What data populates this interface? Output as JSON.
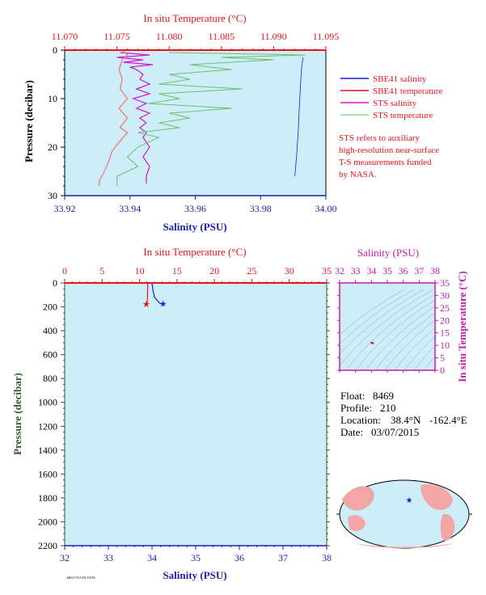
{
  "chart_data": [
    {
      "type": "line",
      "title": "",
      "top_axis_label": "In situ Temperature (°C)",
      "bottom_axis_label": "Salinity (PSU)",
      "left_axis_label": "Pressure (decibar)",
      "temperature_range": [
        11.07,
        11.095
      ],
      "temperature_ticks": [
        "11.070",
        "11.075",
        "11.080",
        "11.085",
        "11.090",
        "11.095"
      ],
      "salinity_range": [
        33.92,
        34.0
      ],
      "salinity_ticks": [
        "33.92",
        "33.94",
        "33.96",
        "33.98",
        "34.00"
      ],
      "pressure_range": [
        0,
        30
      ],
      "pressure_ticks": [
        "0",
        "10",
        "20",
        "30"
      ],
      "legend": [
        {
          "name": "SBE41 salinity",
          "color": "#1b1fd0"
        },
        {
          "name": "SBE41 temperature",
          "color": "#e8131b"
        },
        {
          "name": "STS salinity",
          "color": "#d01ad0"
        },
        {
          "name": "STS temperature",
          "color": "#8fd08f"
        }
      ],
      "note": [
        "STS refers to auxiliary",
        "high-resolution near-surface",
        "T-S measurements funded",
        "by NASA."
      ],
      "series": [
        {
          "name": "SBE41 salinity",
          "points": [
            [
              33.993,
              1.5
            ],
            [
              33.9925,
              4
            ],
            [
              33.992,
              10
            ],
            [
              33.9915,
              17
            ],
            [
              33.991,
              22
            ],
            [
              33.9905,
              26
            ]
          ]
        },
        {
          "name": "STS salinity",
          "points": [
            [
              33.937,
              0.5
            ],
            [
              33.946,
              1
            ],
            [
              33.936,
              1.5
            ],
            [
              33.944,
              2
            ],
            [
              33.938,
              2.5
            ],
            [
              33.947,
              3
            ],
            [
              33.94,
              3.5
            ],
            [
              33.942,
              4
            ],
            [
              33.944,
              5
            ],
            [
              33.943,
              6
            ],
            [
              33.946,
              7
            ],
            [
              33.942,
              8
            ],
            [
              33.946,
              9
            ],
            [
              33.941,
              10
            ],
            [
              33.945,
              11
            ],
            [
              33.942,
              12
            ],
            [
              33.946,
              13
            ],
            [
              33.943,
              14
            ],
            [
              33.945,
              15
            ],
            [
              33.943,
              16
            ],
            [
              33.945,
              17
            ],
            [
              33.944,
              18
            ],
            [
              33.946,
              20
            ],
            [
              33.944,
              22
            ],
            [
              33.946,
              24
            ],
            [
              33.945,
              26
            ],
            [
              33.945,
              27.5
            ]
          ]
        },
        {
          "name": "SBE41 temperature",
          "points": [
            [
              11.0755,
              0
            ],
            [
              11.076,
              1
            ],
            [
              11.0755,
              2
            ],
            [
              11.0752,
              4
            ],
            [
              11.0755,
              6
            ],
            [
              11.0753,
              8
            ],
            [
              11.076,
              10
            ],
            [
              11.0752,
              12
            ],
            [
              11.076,
              14
            ],
            [
              11.0753,
              16
            ],
            [
              11.076,
              17
            ],
            [
              11.0752,
              19
            ],
            [
              11.0745,
              21
            ],
            [
              11.0742,
              23
            ],
            [
              11.0738,
              25
            ],
            [
              11.0733,
              27
            ],
            [
              11.0733,
              28
            ]
          ]
        },
        {
          "name": "STS temperature",
          "points": [
            [
              11.08,
              0.5
            ],
            [
              11.093,
              1
            ],
            [
              11.085,
              1.5
            ],
            [
              11.09,
              2
            ],
            [
              11.082,
              3
            ],
            [
              11.086,
              4
            ],
            [
              11.08,
              5
            ],
            [
              11.082,
              6
            ],
            [
              11.079,
              7
            ],
            [
              11.087,
              8
            ],
            [
              11.079,
              9
            ],
            [
              11.081,
              10
            ],
            [
              11.078,
              11
            ],
            [
              11.086,
              12
            ],
            [
              11.08,
              13
            ],
            [
              11.082,
              14
            ],
            [
              11.079,
              15
            ],
            [
              11.081,
              16
            ],
            [
              11.077,
              17
            ],
            [
              11.079,
              18
            ],
            [
              11.077,
              20
            ],
            [
              11.076,
              22
            ],
            [
              11.077,
              24
            ],
            [
              11.075,
              26
            ],
            [
              11.075,
              28
            ]
          ]
        }
      ]
    },
    {
      "type": "line",
      "title": "",
      "top_axis_label": "In situ Temperature (°C)",
      "bottom_axis_label": "Salinity (PSU)",
      "left_axis_label": "Pressure (decibar)",
      "temperature_range": [
        0,
        35
      ],
      "temperature_ticks": [
        "0",
        "5",
        "10",
        "15",
        "20",
        "25",
        "30",
        "35"
      ],
      "salinity_range": [
        32,
        38
      ],
      "salinity_ticks": [
        "32",
        "33",
        "34",
        "35",
        "36",
        "37",
        "38"
      ],
      "pressure_range": [
        0,
        2200
      ],
      "pressure_ticks": [
        "0",
        "200",
        "400",
        "600",
        "800",
        "1000",
        "1200",
        "1400",
        "1600",
        "1800",
        "2000",
        "2200"
      ],
      "series": [
        {
          "name": "Salinity",
          "points": [
            [
              34.0,
              0
            ],
            [
              34.02,
              60
            ],
            [
              34.06,
              120
            ],
            [
              34.15,
              160
            ],
            [
              34.2,
              175
            ]
          ]
        },
        {
          "name": "Temperature",
          "points": [
            [
              11.08,
              0
            ],
            [
              11.07,
              80
            ],
            [
              11.05,
              140
            ],
            [
              11.0,
              175
            ]
          ]
        }
      ],
      "markers": [
        {
          "name": "Salinity",
          "value": [
            34.25,
            172
          ]
        },
        {
          "name": "Temperature",
          "value": [
            10.9,
            175
          ]
        }
      ]
    },
    {
      "type": "scatter",
      "title": "",
      "top_axis_label": "Salinity (PSU)",
      "right_axis_label": "In situ Temperature (°C)",
      "salinity_range": [
        32,
        38
      ],
      "salinity_ticks": [
        "32",
        "33",
        "34",
        "35",
        "36",
        "37",
        "38"
      ],
      "temperature_range": [
        0,
        35
      ],
      "temperature_ticks": [
        "0",
        "5",
        "10",
        "15",
        "20",
        "25",
        "30",
        "35"
      ],
      "points": [
        [
          34.0,
          11.07
        ],
        [
          34.05,
          10.9
        ],
        [
          34.1,
          10.8
        ]
      ]
    }
  ],
  "info": {
    "float_label": "Float:",
    "float_value": "8469",
    "profile_label": "Profile:",
    "profile_value": "210",
    "location_label": "Location:",
    "location_lat": "38.4°N",
    "location_lon": "-162.4°E",
    "date_label": "Date:",
    "date_value": "03/07/2015"
  },
  "colors": {
    "panel_bg": "#cdeef8",
    "red": "#e8131b",
    "blue": "#1b1fa8",
    "green_text": "#2f5a2f",
    "magenta": "#c21bb0",
    "land": "#f4a6a6",
    "ocean": "#cdeef8"
  }
}
